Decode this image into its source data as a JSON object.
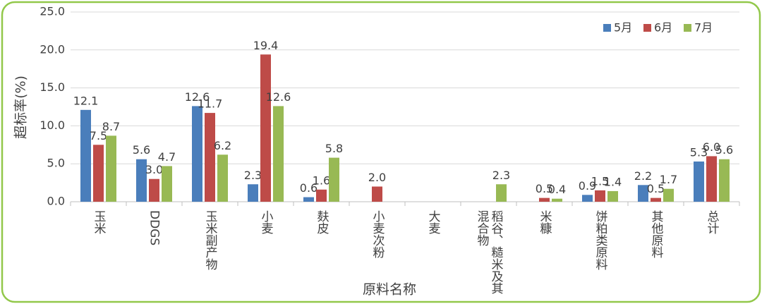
{
  "chart_data": {
    "type": "bar",
    "y_label": "超标率(%)",
    "x_label": "原料名称",
    "categories": [
      "玉米",
      "DDGS",
      "玉米副产物",
      "小麦",
      "麸皮",
      "小麦次粉",
      "大麦",
      "稻谷、糙米及其混合物",
      "米糠",
      "饼粕类原料",
      "其他原料",
      "总计"
    ],
    "series": [
      {
        "name": "5月",
        "color": "#4a7ebb",
        "values": [
          12.1,
          5.6,
          12.6,
          2.3,
          0.6,
          null,
          null,
          null,
          null,
          0.9,
          2.2,
          5.3
        ],
        "value_labels": [
          "12.1",
          "5.6",
          "12.6",
          "2.3",
          "0.6",
          null,
          null,
          null,
          null,
          "0.9",
          "2.2",
          "5.3"
        ]
      },
      {
        "name": "6月",
        "color": "#be4b48",
        "values": [
          7.5,
          3.0,
          11.7,
          19.4,
          1.6,
          2.0,
          null,
          null,
          0.5,
          1.5,
          0.5,
          6.0
        ],
        "value_labels": [
          "7.5",
          "3.0",
          "11.7",
          "19.4",
          "1.6",
          "2.0",
          null,
          null,
          "0.5",
          "1.5",
          "0.5",
          "6.0"
        ]
      },
      {
        "name": "7月",
        "color": "#98b954",
        "values": [
          8.7,
          4.7,
          6.2,
          12.6,
          5.8,
          null,
          null,
          2.3,
          0.4,
          1.4,
          1.7,
          5.6
        ],
        "value_labels": [
          "8.7",
          "4.7",
          "6.2",
          "12.6",
          "5.8",
          null,
          null,
          "2.3",
          "0.4",
          "1.4",
          "1.7",
          "5.6"
        ]
      }
    ],
    "ylim": [
      0,
      25
    ],
    "yticks": [
      {
        "value": 0,
        "label": "0.0"
      },
      {
        "value": 5,
        "label": "5.0"
      },
      {
        "value": 10,
        "label": "10.0"
      },
      {
        "value": 15,
        "label": "15.0"
      },
      {
        "value": 20,
        "label": "20.0"
      },
      {
        "value": 25,
        "label": "25.0"
      }
    ],
    "grid": true,
    "legend": "top-right"
  }
}
